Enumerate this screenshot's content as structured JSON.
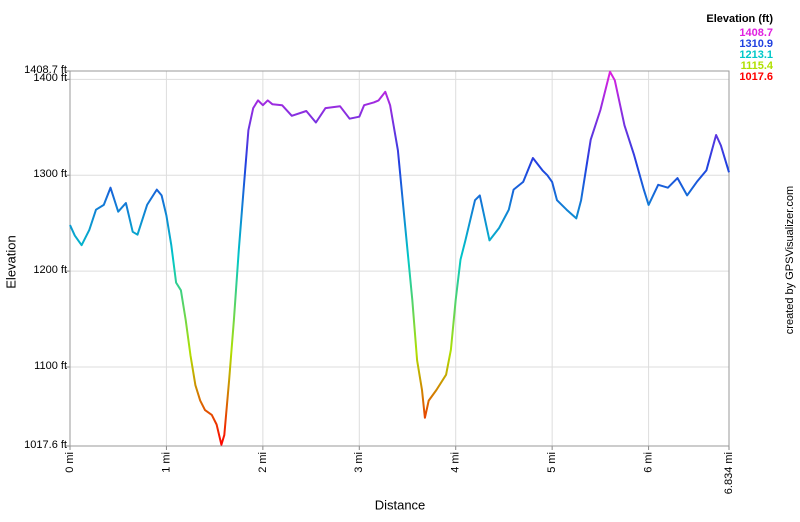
{
  "chart_data": {
    "type": "line",
    "x_label": "Distance",
    "y_label": "Elevation",
    "credit": "created by GPSVisualizer.com",
    "legend": {
      "title": "Elevation (ft)",
      "entries": [
        {
          "value": 1408.7,
          "color": "#e020e0"
        },
        {
          "value": 1310.9,
          "color": "#2040e0"
        },
        {
          "value": 1213.1,
          "color": "#00c8c8"
        },
        {
          "value": 1115.4,
          "color": "#b0e000"
        },
        {
          "value": 1017.6,
          "color": "#ff0000"
        }
      ]
    },
    "xlim": [
      0,
      6.834
    ],
    "ylim": [
      1017.6,
      1408.7
    ],
    "xticks": [
      {
        "value": 0,
        "label": "0 mi"
      },
      {
        "value": 1,
        "label": "1 mi"
      },
      {
        "value": 2,
        "label": "2 mi"
      },
      {
        "value": 3,
        "label": "3 mi"
      },
      {
        "value": 4,
        "label": "4 mi"
      },
      {
        "value": 5,
        "label": "5 mi"
      },
      {
        "value": 6,
        "label": "6 mi"
      },
      {
        "value": 6.834,
        "label": "6.834 mi"
      }
    ],
    "yticks": [
      {
        "value": 1017.6,
        "label": "1017.6 ft"
      },
      {
        "value": 1100,
        "label": "1100 ft"
      },
      {
        "value": 1200,
        "label": "1200 ft"
      },
      {
        "value": 1300,
        "label": "1300 ft"
      },
      {
        "value": 1400,
        "label": "1400 ft"
      },
      {
        "value": 1408.7,
        "label": "1408.7 ft"
      }
    ],
    "grid": true,
    "x": [
      0,
      0.05,
      0.12,
      0.2,
      0.27,
      0.35,
      0.42,
      0.5,
      0.58,
      0.65,
      0.7,
      0.8,
      0.9,
      0.95,
      1.0,
      1.05,
      1.1,
      1.15,
      1.2,
      1.25,
      1.3,
      1.35,
      1.4,
      1.47,
      1.52,
      1.57,
      1.6,
      1.65,
      1.7,
      1.75,
      1.8,
      1.85,
      1.9,
      1.95,
      2.0,
      2.05,
      2.1,
      2.2,
      2.3,
      2.45,
      2.55,
      2.65,
      2.8,
      2.9,
      3.0,
      3.05,
      3.15,
      3.2,
      3.27,
      3.32,
      3.4,
      3.47,
      3.55,
      3.6,
      3.65,
      3.68,
      3.72,
      3.8,
      3.9,
      3.95,
      4.0,
      4.05,
      4.1,
      4.2,
      4.25,
      4.35,
      4.45,
      4.55,
      4.6,
      4.7,
      4.8,
      4.9,
      4.95,
      5.0,
      5.05,
      5.15,
      5.25,
      5.3,
      5.4,
      5.5,
      5.6,
      5.65,
      5.75,
      5.85,
      5.95,
      6.0,
      6.1,
      6.2,
      6.3,
      6.4,
      6.5,
      6.6,
      6.7,
      6.75,
      6.834
    ],
    "values": [
      1248,
      1237,
      1227,
      1243,
      1264,
      1269,
      1287,
      1262,
      1271,
      1241,
      1238,
      1269,
      1285,
      1279,
      1258,
      1227,
      1188,
      1180,
      1149,
      1112,
      1081,
      1065,
      1055,
      1050,
      1040,
      1019,
      1029,
      1086,
      1149,
      1222,
      1285,
      1347,
      1370,
      1378,
      1373,
      1378,
      1374,
      1373,
      1362,
      1367,
      1355,
      1370,
      1372,
      1359,
      1361,
      1373,
      1376,
      1378,
      1387,
      1373,
      1326,
      1253,
      1170,
      1107,
      1076,
      1047,
      1065,
      1076,
      1092,
      1118,
      1170,
      1212,
      1232,
      1274,
      1279,
      1232,
      1245,
      1264,
      1285,
      1293,
      1318,
      1305,
      1300,
      1293,
      1274,
      1264,
      1255,
      1274,
      1337,
      1368,
      1408,
      1399,
      1352,
      1321,
      1285,
      1269,
      1290,
      1287,
      1297,
      1279,
      1293,
      1305,
      1342,
      1331,
      1303
    ]
  }
}
